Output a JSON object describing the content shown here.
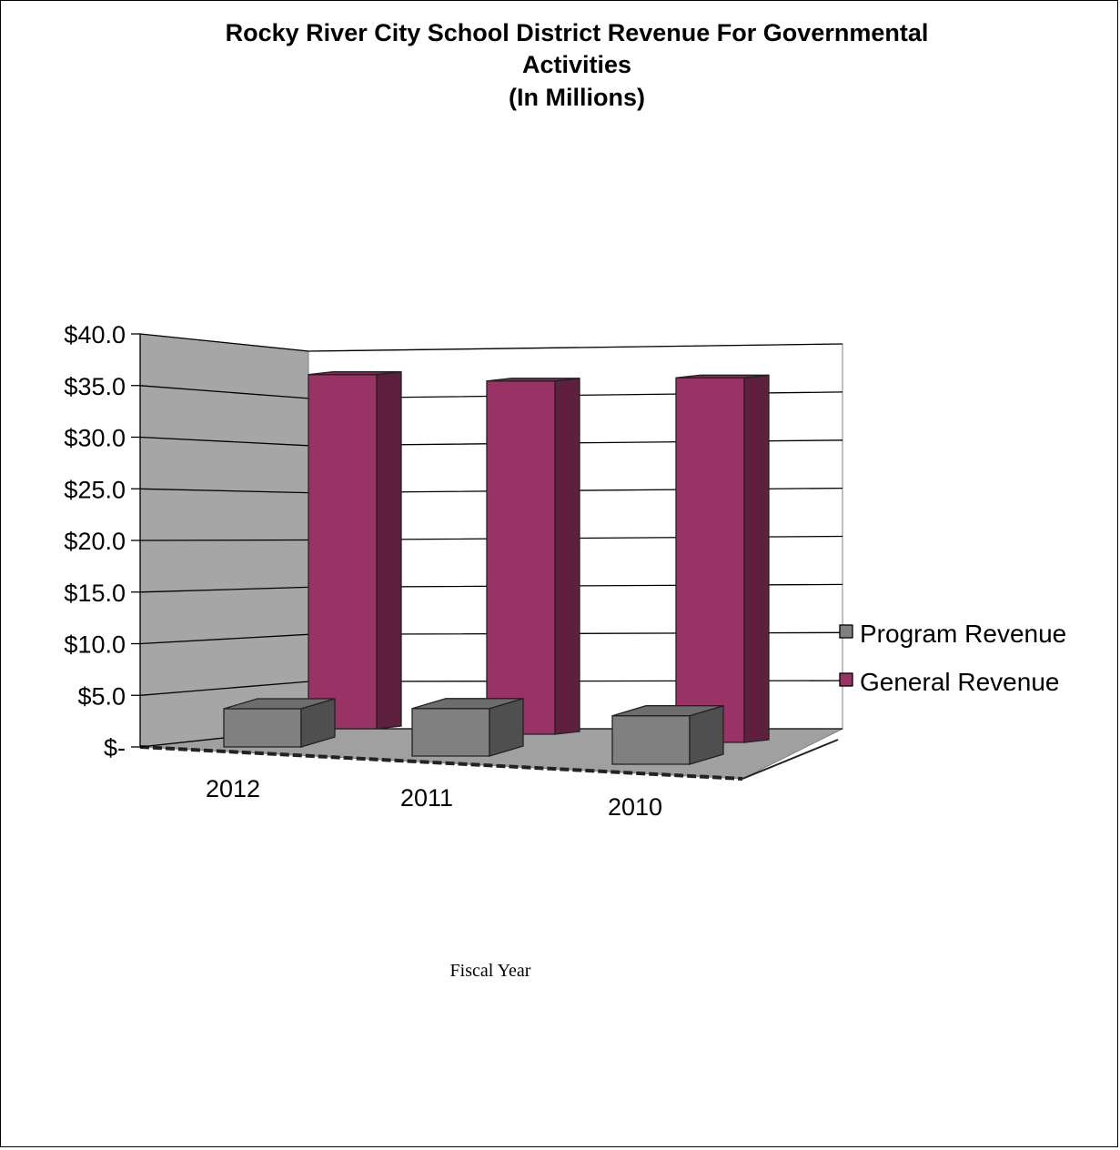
{
  "chart_data": {
    "type": "bar",
    "title_lines": [
      "Rocky River City School District  Revenue For Governmental",
      "Activities",
      "(In Millions)"
    ],
    "categories": [
      "2012",
      "2011",
      "2010"
    ],
    "series": [
      {
        "name": "Program Revenue",
        "values": [
          3.7,
          4.6,
          4.7
        ],
        "color": "#808080"
      },
      {
        "name": "General Revenue",
        "values": [
          34.3,
          34.2,
          35.3
        ],
        "color": "#993366"
      }
    ],
    "y_ticks": [
      "$-",
      "$5.0",
      "$10.0",
      "$15.0",
      "$20.0",
      "$25.0",
      "$30.0",
      "$35.0",
      "$40.0"
    ],
    "ylim": [
      0,
      40
    ],
    "xlabel": "Fiscal Year",
    "ylabel": "",
    "legend_position": "right",
    "grid": true,
    "three_d": true
  }
}
